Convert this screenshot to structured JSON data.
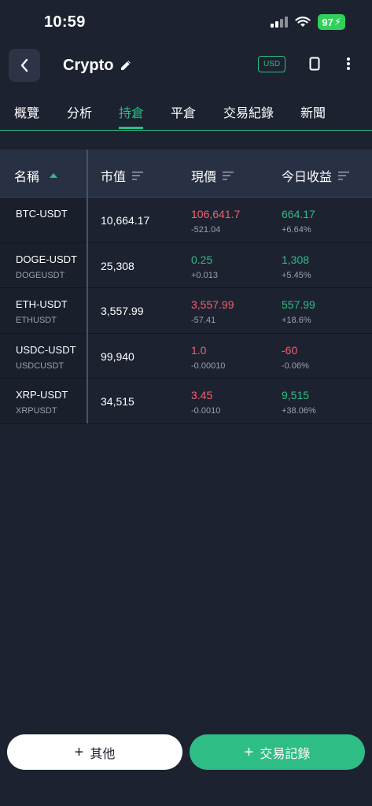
{
  "status_bar": {
    "time": "10:59",
    "battery": "97"
  },
  "header": {
    "title": "Crypto",
    "currency_badge": "USD"
  },
  "tabs": [
    {
      "label": "概覽"
    },
    {
      "label": "分析"
    },
    {
      "label": "持倉"
    },
    {
      "label": "平倉"
    },
    {
      "label": "交易紀錄"
    },
    {
      "label": "新聞"
    }
  ],
  "active_tab": "持倉",
  "table": {
    "columns": [
      "名稱",
      "市值",
      "現價",
      "今日收益"
    ],
    "rows": [
      {
        "symbol": "BTC-USDT",
        "sub": "",
        "market_value": "10,664.17",
        "price": "106,641.7",
        "price_change": "-521.04",
        "pnl": "664.17",
        "pnl_pct": "+6.64%",
        "price_color": "red",
        "pnl_color": "green"
      },
      {
        "symbol": "DOGE-USDT",
        "sub": "DOGEUSDT",
        "market_value": "25,308",
        "price": "0.25",
        "price_change": "+0.013",
        "pnl": "1,308",
        "pnl_pct": "+5.45%",
        "price_color": "green",
        "pnl_color": "green"
      },
      {
        "symbol": "ETH-USDT",
        "sub": "ETHUSDT",
        "market_value": "3,557.99",
        "price": "3,557.99",
        "price_change": "-57.41",
        "pnl": "557.99",
        "pnl_pct": "+18.6%",
        "price_color": "red",
        "pnl_color": "green"
      },
      {
        "symbol": "USDC-USDT",
        "sub": "USDCUSDT",
        "market_value": "99,940",
        "price": "1.0",
        "price_change": "-0.00010",
        "pnl": "-60",
        "pnl_pct": "-0.06%",
        "price_color": "red",
        "pnl_color": "red"
      },
      {
        "symbol": "XRP-USDT",
        "sub": "XRPUSDT",
        "market_value": "34,515",
        "price": "3.45",
        "price_change": "-0.0010",
        "pnl": "9,515",
        "pnl_pct": "+38.06%",
        "price_color": "red",
        "pnl_color": "green"
      }
    ]
  },
  "buttons": {
    "other": "其他",
    "trade_record": "交易記錄"
  },
  "colors": {
    "background": "#1d2231",
    "accent": "#2ebd85",
    "negative": "#f0616d"
  },
  "icons": [
    "back-icon",
    "edit-icon",
    "phone-icon",
    "more-icon",
    "sort-asc-icon",
    "sort-icon",
    "signal-icon",
    "wifi-icon",
    "plus-icon"
  ]
}
